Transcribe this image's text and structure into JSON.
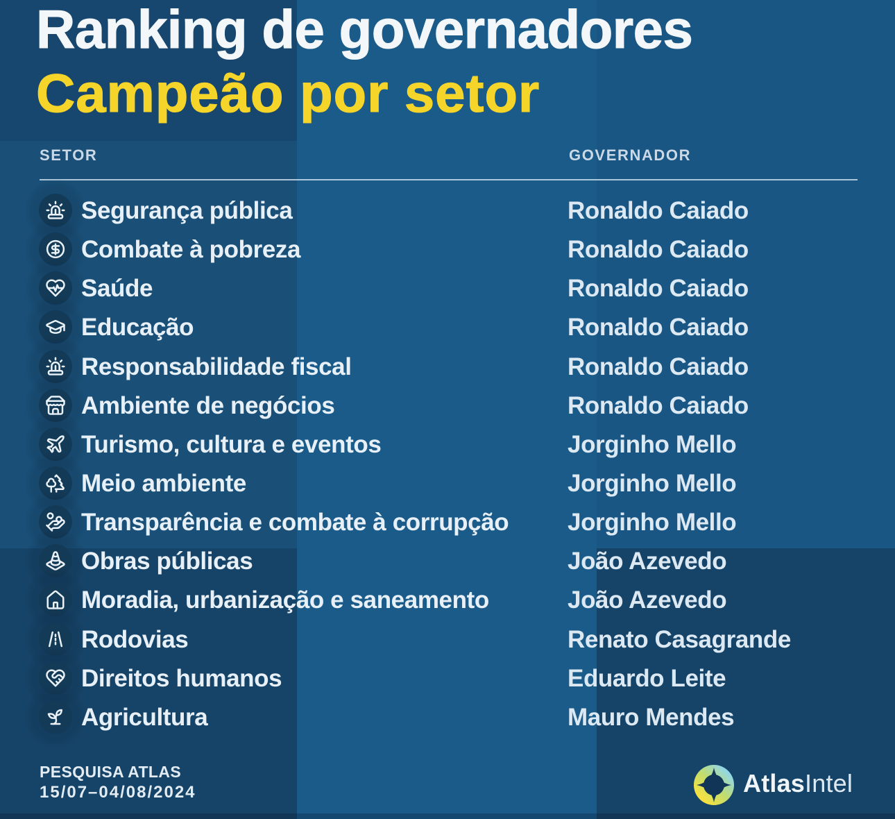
{
  "title": {
    "line1": "Ranking de governadores",
    "line2": "Campeão por setor"
  },
  "table": {
    "col1_header": "SETOR",
    "col2_header": "GOVERNADOR",
    "rows": [
      {
        "icon": "siren-icon",
        "sector": "Segurança pública",
        "governor": "Ronaldo Caiado"
      },
      {
        "icon": "dollar-circle-icon",
        "sector": "Combate à pobreza",
        "governor": "Ronaldo Caiado"
      },
      {
        "icon": "heart-pulse-icon",
        "sector": "Saúde",
        "governor": "Ronaldo Caiado"
      },
      {
        "icon": "graduation-cap-icon",
        "sector": "Educação",
        "governor": "Ronaldo Caiado"
      },
      {
        "icon": "siren-icon",
        "sector": "Responsabilidade fiscal",
        "governor": "Ronaldo Caiado"
      },
      {
        "icon": "store-icon",
        "sector": "Ambiente de negócios",
        "governor": "Ronaldo Caiado"
      },
      {
        "icon": "plane-icon",
        "sector": "Turismo, cultura e eventos",
        "governor": "Jorginho Mello"
      },
      {
        "icon": "trees-icon",
        "sector": "Meio ambiente",
        "governor": "Jorginho Mello"
      },
      {
        "icon": "hand-coins-icon",
        "sector": "Transparência e combate à corrupção",
        "governor": "Jorginho Mello"
      },
      {
        "icon": "traffic-cone-icon",
        "sector": "Obras públicas",
        "governor": "João Azevedo"
      },
      {
        "icon": "house-icon",
        "sector": "Moradia, urbanização e saneamento",
        "governor": "João Azevedo"
      },
      {
        "icon": "road-icon",
        "sector": "Rodovias",
        "governor": "Renato Casagrande"
      },
      {
        "icon": "heart-handshake-icon",
        "sector": "Direitos humanos",
        "governor": "Eduardo Leite"
      },
      {
        "icon": "sprout-icon",
        "sector": "Agricultura",
        "governor": "Mauro Mendes"
      }
    ]
  },
  "footer": {
    "source_line1": "PESQUISA ATLAS",
    "source_line2": "15/07–04/08/2024",
    "brand_bold": "Atlas",
    "brand_light": "Intel"
  },
  "colors": {
    "title_white": "#f4f7f9",
    "title_yellow": "#f6d52a",
    "background_blue": "#1a5b8a",
    "background_navy_dark": "#133e62",
    "icon_circle_navy": "#10334f",
    "logo_gradient": [
      "#ffe139",
      "#c8df68",
      "#8ed6f0"
    ]
  },
  "chart_data": {
    "type": "table",
    "title": "Ranking de governadores — Campeão por setor",
    "columns": [
      "SETOR",
      "GOVERNADOR"
    ],
    "rows": [
      [
        "Segurança pública",
        "Ronaldo Caiado"
      ],
      [
        "Combate à pobreza",
        "Ronaldo Caiado"
      ],
      [
        "Saúde",
        "Ronaldo Caiado"
      ],
      [
        "Educação",
        "Ronaldo Caiado"
      ],
      [
        "Responsabilidade fiscal",
        "Ronaldo Caiado"
      ],
      [
        "Ambiente de negócios",
        "Ronaldo Caiado"
      ],
      [
        "Turismo, cultura e eventos",
        "Jorginho Mello"
      ],
      [
        "Meio ambiente",
        "Jorginho Mello"
      ],
      [
        "Transparência e combate à corrupção",
        "Jorginho Mello"
      ],
      [
        "Obras públicas",
        "João Azevedo"
      ],
      [
        "Moradia, urbanização e saneamento",
        "João Azevedo"
      ],
      [
        "Rodovias",
        "Renato Casagrande"
      ],
      [
        "Direitos humanos",
        "Eduardo Leite"
      ],
      [
        "Agricultura",
        "Mauro Mendes"
      ]
    ],
    "source": "PESQUISA ATLAS 15/07–04/08/2024"
  }
}
